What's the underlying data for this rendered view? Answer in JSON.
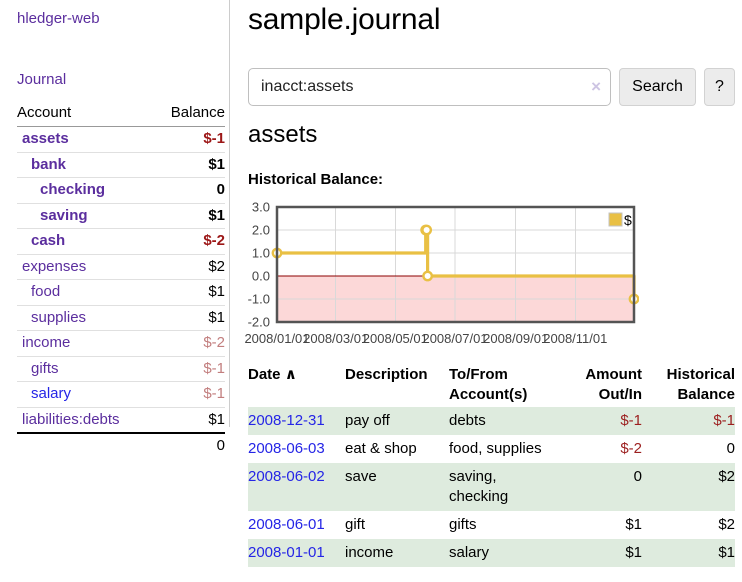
{
  "app": {
    "brand": "hledger-web",
    "nav_journal": "Journal"
  },
  "header": {
    "title": "sample.journal"
  },
  "search": {
    "value": "inacct:assets",
    "clear_icon": "×",
    "button": "Search",
    "help": "?"
  },
  "account_page": {
    "heading": "assets",
    "chart_label": "Historical Balance:"
  },
  "sidebar": {
    "table": {
      "col_account": "Account",
      "col_balance": "Balance",
      "rows": [
        {
          "name": "assets",
          "indent": 1,
          "bold": true,
          "balance": "$-1"
        },
        {
          "name": "bank",
          "indent": 2,
          "bold": true,
          "balance": "$1"
        },
        {
          "name": "checking",
          "indent": 3,
          "bold": true,
          "balance": "0"
        },
        {
          "name": "saving",
          "indent": 3,
          "bold": true,
          "balance": "$1"
        },
        {
          "name": "cash",
          "indent": 2,
          "bold": true,
          "balance": "$-2"
        },
        {
          "name": "expenses",
          "indent": 1,
          "bold": false,
          "balance": "$2"
        },
        {
          "name": "food",
          "indent": 2,
          "bold": false,
          "balance": "$1"
        },
        {
          "name": "supplies",
          "indent": 2,
          "bold": false,
          "balance": "$1"
        },
        {
          "name": "income",
          "indent": 1,
          "bold": false,
          "balance": "$-2"
        },
        {
          "name": "gifts",
          "indent": 2,
          "bold": false,
          "balance": "$-1"
        },
        {
          "name": "salary",
          "indent": 2,
          "bold": false,
          "balance": "$-1",
          "blue": true
        },
        {
          "name": "liabilities:debts",
          "indent": 1,
          "bold": false,
          "balance": "$1"
        }
      ],
      "total": "0"
    }
  },
  "chart_data": {
    "type": "line",
    "title": "Historical Balance:",
    "step": true,
    "xlim": [
      "2008-01-01",
      "2008-12-31"
    ],
    "ylim": [
      -2,
      3
    ],
    "y_ticks": [
      3,
      2,
      1,
      0,
      -1,
      -2
    ],
    "x_ticks": [
      "2008/01/01",
      "2008/03/01",
      "2008/05/01",
      "2008/07/01",
      "2008/09/01",
      "2008/11/01"
    ],
    "legend_position": "top-right",
    "series": [
      {
        "name": "$",
        "color": "#e9c044",
        "points": [
          [
            "2008-01-01",
            1
          ],
          [
            "2008-06-01",
            2
          ],
          [
            "2008-06-02",
            2
          ],
          [
            "2008-06-03",
            0
          ],
          [
            "2008-12-31",
            -1
          ]
        ]
      }
    ],
    "colors": {
      "grid": "#d9d9d9",
      "border": "#545454",
      "zero_line": "#8b0000",
      "negative_region": "#fcd8d8",
      "tick_label": "#444444"
    }
  },
  "register": {
    "columns": {
      "date": "Date",
      "sort_indicator": "∧",
      "description": "Description",
      "accounts": "To/From Account(s)",
      "amount": "Amount Out/In",
      "balance": "Historical Balance"
    },
    "rows": [
      {
        "date": "2008-12-31",
        "description": "pay off",
        "accounts": "debts",
        "amount": "$-1",
        "balance": "$-1"
      },
      {
        "date": "2008-06-03",
        "description": "eat & shop",
        "accounts": "food, supplies",
        "amount": "$-2",
        "balance": "0"
      },
      {
        "date": "2008-06-02",
        "description": "save",
        "accounts": "saving, checking",
        "amount": "0",
        "balance": "$2"
      },
      {
        "date": "2008-06-01",
        "description": "gift",
        "accounts": "gifts",
        "amount": "$1",
        "balance": "$2"
      },
      {
        "date": "2008-01-01",
        "description": "income",
        "accounts": "salary",
        "amount": "$1",
        "balance": "$1"
      }
    ]
  },
  "colors": {
    "link_purple": "#5b2e9e",
    "link_blue": "#2525e6",
    "negative_strong": "#9c1717",
    "negative_soft": "#c27e7e",
    "row_stripe_green": "#deebde"
  }
}
